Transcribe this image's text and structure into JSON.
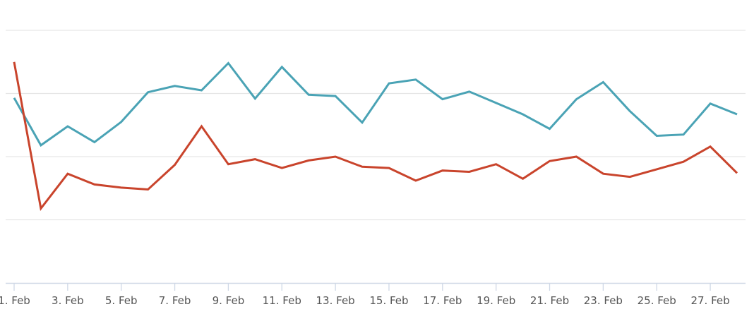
{
  "chart_data": {
    "type": "line",
    "title": "",
    "xlabel": "",
    "ylabel": "",
    "x": [
      "1. Feb",
      "2. Feb",
      "3. Feb",
      "4. Feb",
      "5. Feb",
      "6. Feb",
      "7. Feb",
      "8. Feb",
      "9. Feb",
      "10. Feb",
      "11. Feb",
      "12. Feb",
      "13. Feb",
      "14. Feb",
      "15. Feb",
      "16. Feb",
      "17. Feb",
      "18. Feb",
      "19. Feb",
      "20. Feb",
      "21. Feb",
      "22. Feb",
      "23. Feb",
      "24. Feb",
      "25. Feb",
      "26. Feb",
      "27. Feb",
      "28. Feb"
    ],
    "x_tick_labels": [
      "1. Feb",
      "3. Feb",
      "5. Feb",
      "7. Feb",
      "9. Feb",
      "11. Feb",
      "13. Feb",
      "15. Feb",
      "17. Feb",
      "19. Feb",
      "21. Feb",
      "23. Feb",
      "25. Feb",
      "27. Feb"
    ],
    "ylim": [
      0,
      4
    ],
    "y_gridlines": [
      1,
      2,
      3,
      4
    ],
    "y_tick_labels_shown": false,
    "grid": true,
    "legend": "none",
    "series": [
      {
        "color": "#4aa3b5",
        "values": [
          2.93,
          2.18,
          2.48,
          2.23,
          2.55,
          3.02,
          3.12,
          3.05,
          3.48,
          2.92,
          3.42,
          2.98,
          2.96,
          2.54,
          3.16,
          3.22,
          2.91,
          3.03,
          2.85,
          2.67,
          2.44,
          2.91,
          3.18,
          2.72,
          2.33,
          2.35,
          2.84,
          2.67
        ]
      },
      {
        "color": "#c9442c",
        "values": [
          3.5,
          1.18,
          1.73,
          1.56,
          1.51,
          1.48,
          1.87,
          2.48,
          1.88,
          1.96,
          1.82,
          1.94,
          2.0,
          1.84,
          1.82,
          1.62,
          1.78,
          1.76,
          1.88,
          1.65,
          1.93,
          2.0,
          1.73,
          1.68,
          1.8,
          1.92,
          2.16,
          1.74
        ]
      }
    ]
  }
}
